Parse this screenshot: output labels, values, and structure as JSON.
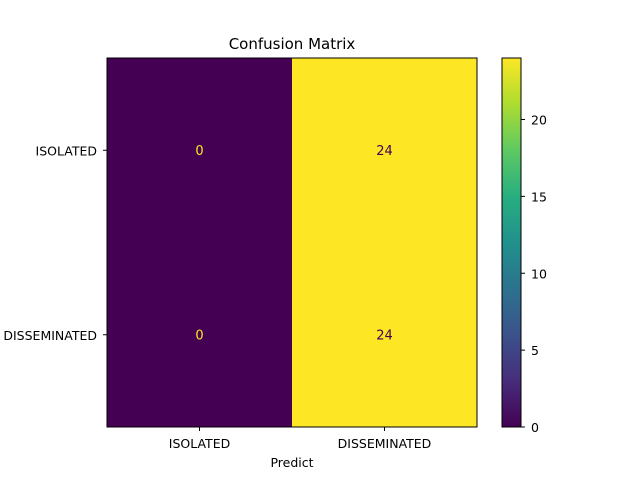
{
  "chart_data": {
    "type": "heatmap",
    "title": "Confusion Matrix",
    "xlabel": "Predict",
    "ylabel": "",
    "x_categories": [
      "ISOLATED",
      "DISSEMINATED"
    ],
    "y_categories": [
      "ISOLATED",
      "DISSEMINATED"
    ],
    "values": [
      [
        0,
        24
      ],
      [
        0,
        24
      ]
    ],
    "colormap": "viridis",
    "color_range": [
      0,
      24
    ],
    "colorbar_ticks": [
      0,
      5,
      10,
      15,
      20
    ],
    "colors": {
      "low": "#440154",
      "high": "#fde725"
    }
  }
}
